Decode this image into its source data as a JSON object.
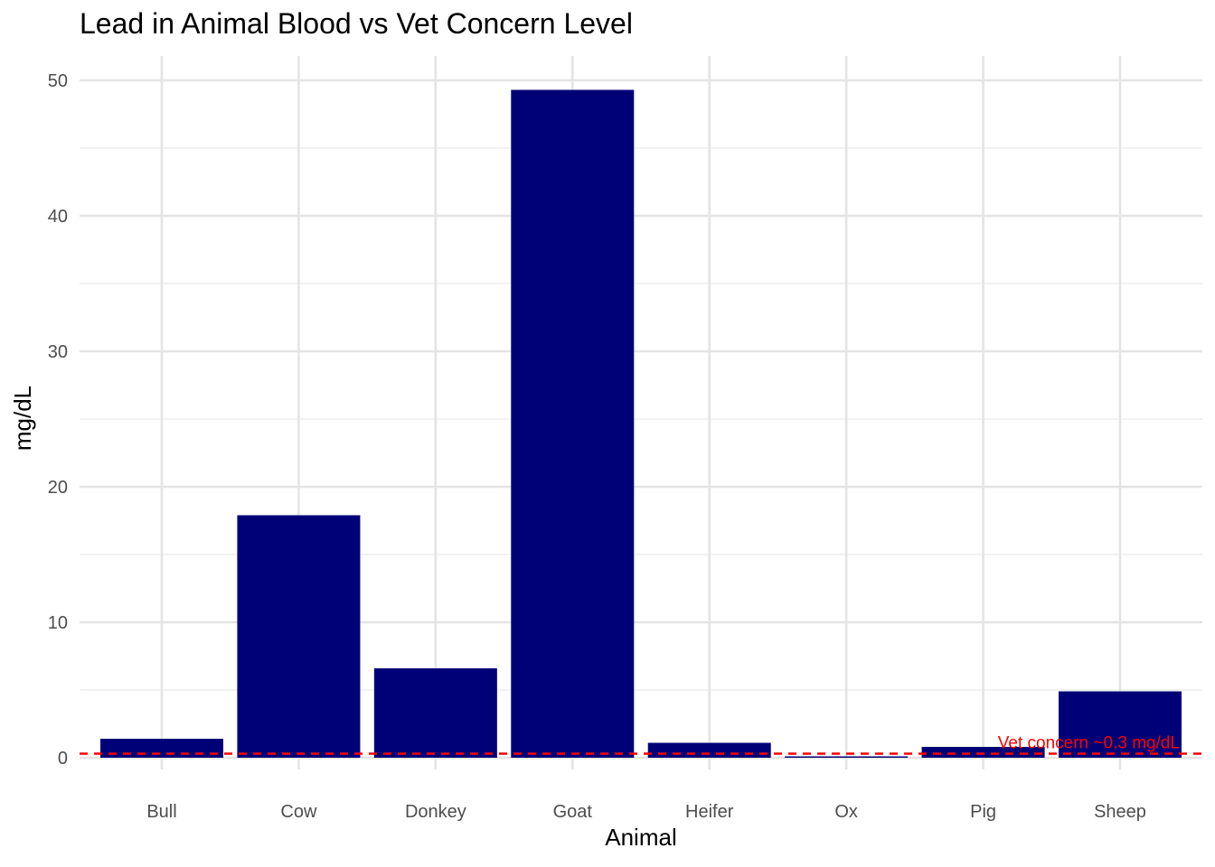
{
  "chart_data": {
    "type": "bar",
    "title": "Lead in Animal Blood vs Vet Concern Level",
    "xlabel": "Animal",
    "ylabel": "mg/dL",
    "categories": [
      "Bull",
      "Cow",
      "Donkey",
      "Goat",
      "Heifer",
      "Ox",
      "Pig",
      "Sheep"
    ],
    "values": [
      1.4,
      17.9,
      6.6,
      49.3,
      1.1,
      0.1,
      0.8,
      4.9
    ],
    "ylim": [
      0,
      51.5
    ],
    "y_ticks": [
      0,
      10,
      20,
      30,
      40,
      50
    ],
    "grid": true,
    "bar_color": "#000077",
    "reference_line": {
      "value": 0.3,
      "label": "Vet concern ~0.3 mg/dL",
      "color": "#ff0000",
      "style": "dashed"
    }
  }
}
